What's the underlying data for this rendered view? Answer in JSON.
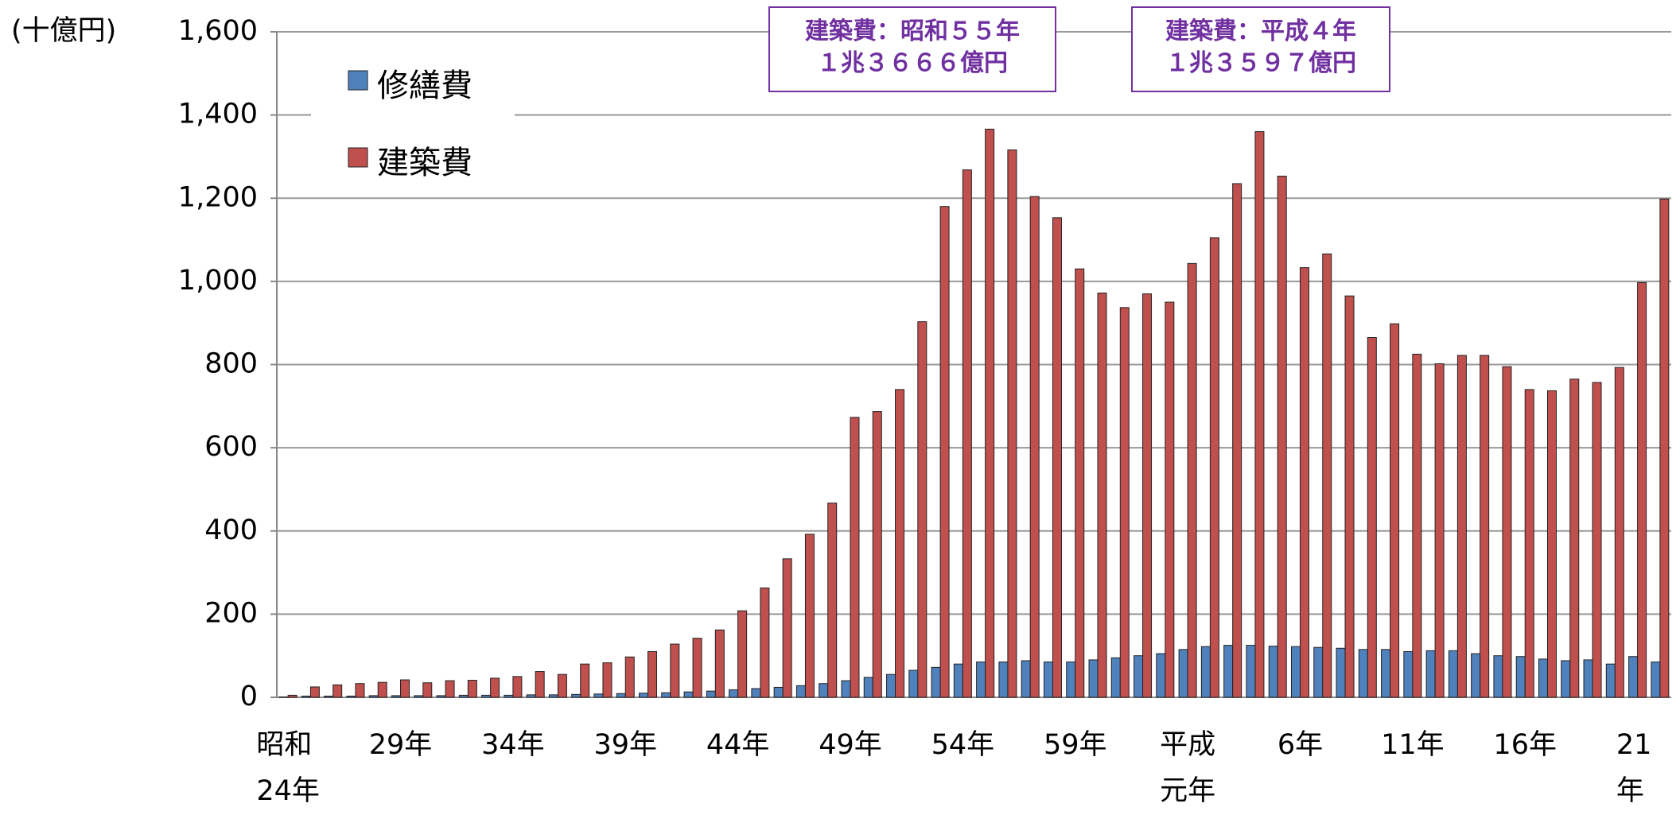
{
  "chart_data": {
    "type": "bar",
    "ylabel": "(十億円)",
    "categories": [
      "昭和\n24年",
      null,
      null,
      null,
      null,
      "29年",
      null,
      null,
      null,
      null,
      "34年",
      null,
      null,
      null,
      null,
      "39年",
      null,
      null,
      null,
      null,
      "44年",
      null,
      null,
      null,
      null,
      "49年",
      null,
      null,
      null,
      null,
      "54年",
      null,
      null,
      null,
      null,
      "59年",
      null,
      null,
      null,
      null,
      "平成\n元年",
      null,
      null,
      null,
      null,
      "6年",
      null,
      null,
      null,
      null,
      "11年",
      null,
      null,
      null,
      null,
      "16年",
      null,
      null,
      null,
      null,
      "21年",
      null
    ],
    "series": [
      {
        "name": "修繕費",
        "color": "#4f81bd",
        "values": [
          1,
          3,
          3,
          3,
          4,
          4,
          4,
          4,
          5,
          5,
          5,
          6,
          6,
          7,
          8,
          9,
          10,
          11,
          13,
          15,
          18,
          21,
          24,
          28,
          33,
          40,
          48,
          55,
          65,
          72,
          80,
          85,
          85,
          88,
          85,
          85,
          90,
          95,
          100,
          105,
          115,
          122,
          125,
          125,
          123,
          122,
          120,
          118,
          115,
          115,
          110,
          112,
          112,
          105,
          100,
          98,
          92,
          88,
          90,
          80,
          98,
          85
        ]
      },
      {
        "name": "建築費",
        "color": "#c0504d",
        "values": [
          5,
          25,
          30,
          33,
          36,
          42,
          35,
          40,
          41,
          46,
          50,
          62,
          55,
          80,
          83,
          97,
          110,
          128,
          142,
          162,
          208,
          263,
          333,
          392,
          467,
          673,
          687,
          740,
          903,
          1180,
          1268,
          1366,
          1316,
          1204,
          1153,
          1030,
          972,
          937,
          970,
          950,
          1043,
          1105,
          1235,
          1360,
          1253,
          1033,
          1066,
          965,
          865,
          898,
          825,
          802,
          822,
          822,
          795,
          740,
          737,
          765,
          757,
          793,
          997,
          1198
        ]
      }
    ],
    "annotations": [
      "建築費：昭和５５年\n１兆３６６６億円",
      "建築費：平成４年\n１兆３５９７億円"
    ],
    "ylim": [
      0,
      1600
    ],
    "yticks": [
      0,
      200,
      400,
      600,
      800,
      {
        "value": 1000,
        "label": "1,000"
      },
      {
        "value": 1200,
        "label": "1,200"
      },
      {
        "value": 1400,
        "label": "1,400"
      },
      {
        "value": 1600,
        "label": "1,600"
      }
    ],
    "grid": true
  }
}
